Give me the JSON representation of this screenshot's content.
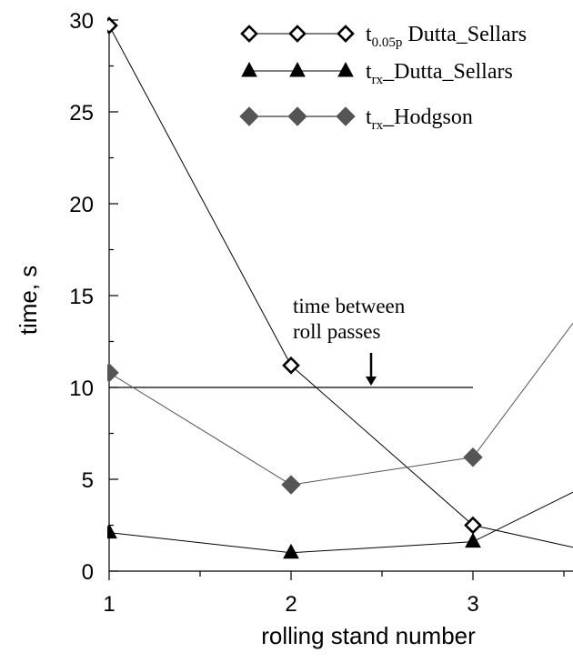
{
  "chart_data": {
    "type": "line",
    "xlabel": "rolling stand number",
    "ylabel": "time, s",
    "xlim": [
      1,
      3.55
    ],
    "ylim": [
      0,
      30
    ],
    "x_ticks": [
      1,
      2,
      3
    ],
    "y_ticks": [
      0,
      5,
      10,
      15,
      20,
      25,
      30
    ],
    "legend_position": "top-right",
    "series": [
      {
        "key": "t005p",
        "name_main": "t",
        "name_sub": "0.05p",
        "name_rest": " Dutta_Sellars",
        "marker": "diamond-open",
        "color": "#000000",
        "x": [
          1,
          2,
          3,
          3.55
        ],
        "y": [
          29.7,
          11.2,
          2.5,
          1.3
        ]
      },
      {
        "key": "trx_ds",
        "name_main": "t",
        "name_sub": "rx",
        "name_rest": "_Dutta_Sellars",
        "marker": "triangle",
        "color": "#000000",
        "x": [
          1,
          2,
          3,
          3.55
        ],
        "y": [
          2.1,
          1.0,
          1.6,
          4.3
        ]
      },
      {
        "key": "trx_h",
        "name_main": "t",
        "name_sub": "rx",
        "name_rest": "_Hodgson",
        "marker": "diamond-filled",
        "color": "#555555",
        "x": [
          1,
          2,
          3,
          3.55
        ],
        "y": [
          10.8,
          4.7,
          6.2,
          13.5
        ]
      }
    ],
    "reference_line": {
      "y": 10,
      "x_start": 1,
      "x_end": 3
    },
    "annotation": {
      "lines": [
        "time between",
        "roll passes"
      ],
      "arrow_x": 2.44,
      "arrow_y": 10
    }
  }
}
